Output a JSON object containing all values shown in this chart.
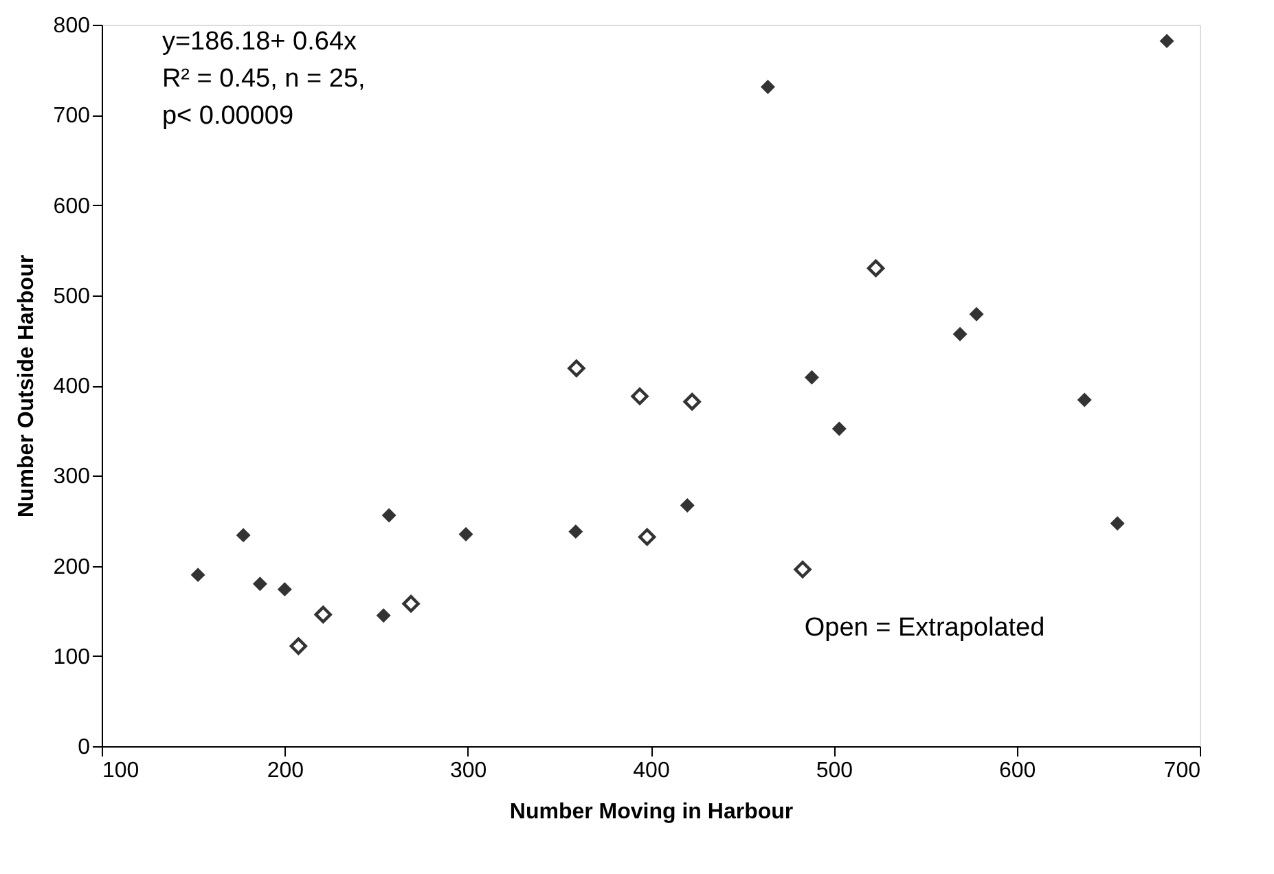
{
  "chart_data": {
    "type": "scatter",
    "xlabel": "Number Moving in Harbour",
    "ylabel": "Number Outside Harbour",
    "xlim": [
      100,
      700
    ],
    "xticks": [
      100,
      200,
      300,
      400,
      500,
      600,
      700
    ],
    "ylim": [
      0,
      800
    ],
    "yticks": [
      0,
      100,
      200,
      300,
      400,
      500,
      600,
      700,
      800
    ],
    "grid": false,
    "marker": "diamond",
    "annotations": [
      "y=186.18+ 0.64x",
      "R² = 0.45, n = 25,",
      "p< 0.00009",
      "Open = Extrapolated"
    ],
    "series": [
      {
        "color": "#333333",
        "x": [
          152.6,
          177.4,
          186.5,
          200,
          254,
          257,
          299,
          359,
          420,
          464,
          488,
          503,
          569,
          578,
          637,
          655,
          682
        ],
        "values": [
          190,
          234,
          180,
          174,
          145,
          256,
          235,
          238,
          267,
          731,
          409,
          352,
          457,
          479,
          384,
          247,
          782
        ]
      },
      {
        "color": "#333333",
        "x": [
          207.5,
          221,
          269,
          359.4,
          394,
          398,
          422.6,
          483,
          523
        ],
        "values": [
          111,
          146,
          158,
          419,
          388,
          232,
          382,
          196,
          530
        ]
      }
    ]
  }
}
